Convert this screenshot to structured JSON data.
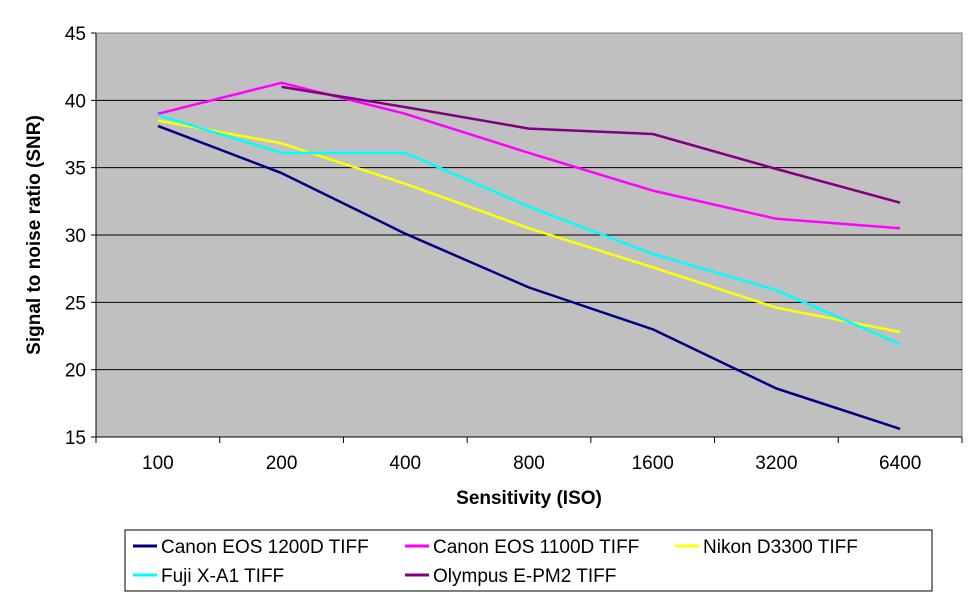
{
  "chart_data": {
    "type": "line",
    "categories": [
      "100",
      "200",
      "400",
      "800",
      "1600",
      "3200",
      "6400"
    ],
    "xlabel": "Sensitivity (ISO)",
    "ylabel": "Signal to noise ratio (SNR)",
    "ylim": [
      15,
      45
    ],
    "yticks": [
      15,
      20,
      25,
      30,
      35,
      40,
      45
    ],
    "grid": true,
    "legend": "bottom",
    "plot_background": "#C0C0C0",
    "series": [
      {
        "name": "Canon EOS 1200D TIFF",
        "color": "#000080",
        "values": [
          38.1,
          34.6,
          30.1,
          26.1,
          23.0,
          18.6,
          15.6
        ]
      },
      {
        "name": "Canon EOS 1100D TIFF",
        "color": "#FF00FF",
        "values": [
          39.0,
          41.3,
          39.0,
          36.1,
          33.3,
          31.2,
          30.5
        ]
      },
      {
        "name": "Nikon D3300 TIFF",
        "color": "#FFFF00",
        "values": [
          38.5,
          36.8,
          33.8,
          30.5,
          27.6,
          24.6,
          22.8
        ]
      },
      {
        "name": "Fuji X-A1 TIFF",
        "color": "#00FFFF",
        "values": [
          38.9,
          36.1,
          36.1,
          32.1,
          28.6,
          25.9,
          21.9
        ]
      },
      {
        "name": "Olympus E-PM2 TIFF",
        "color": "#800080",
        "values": [
          null,
          41.0,
          39.5,
          37.9,
          37.5,
          34.9,
          32.4
        ]
      }
    ]
  }
}
